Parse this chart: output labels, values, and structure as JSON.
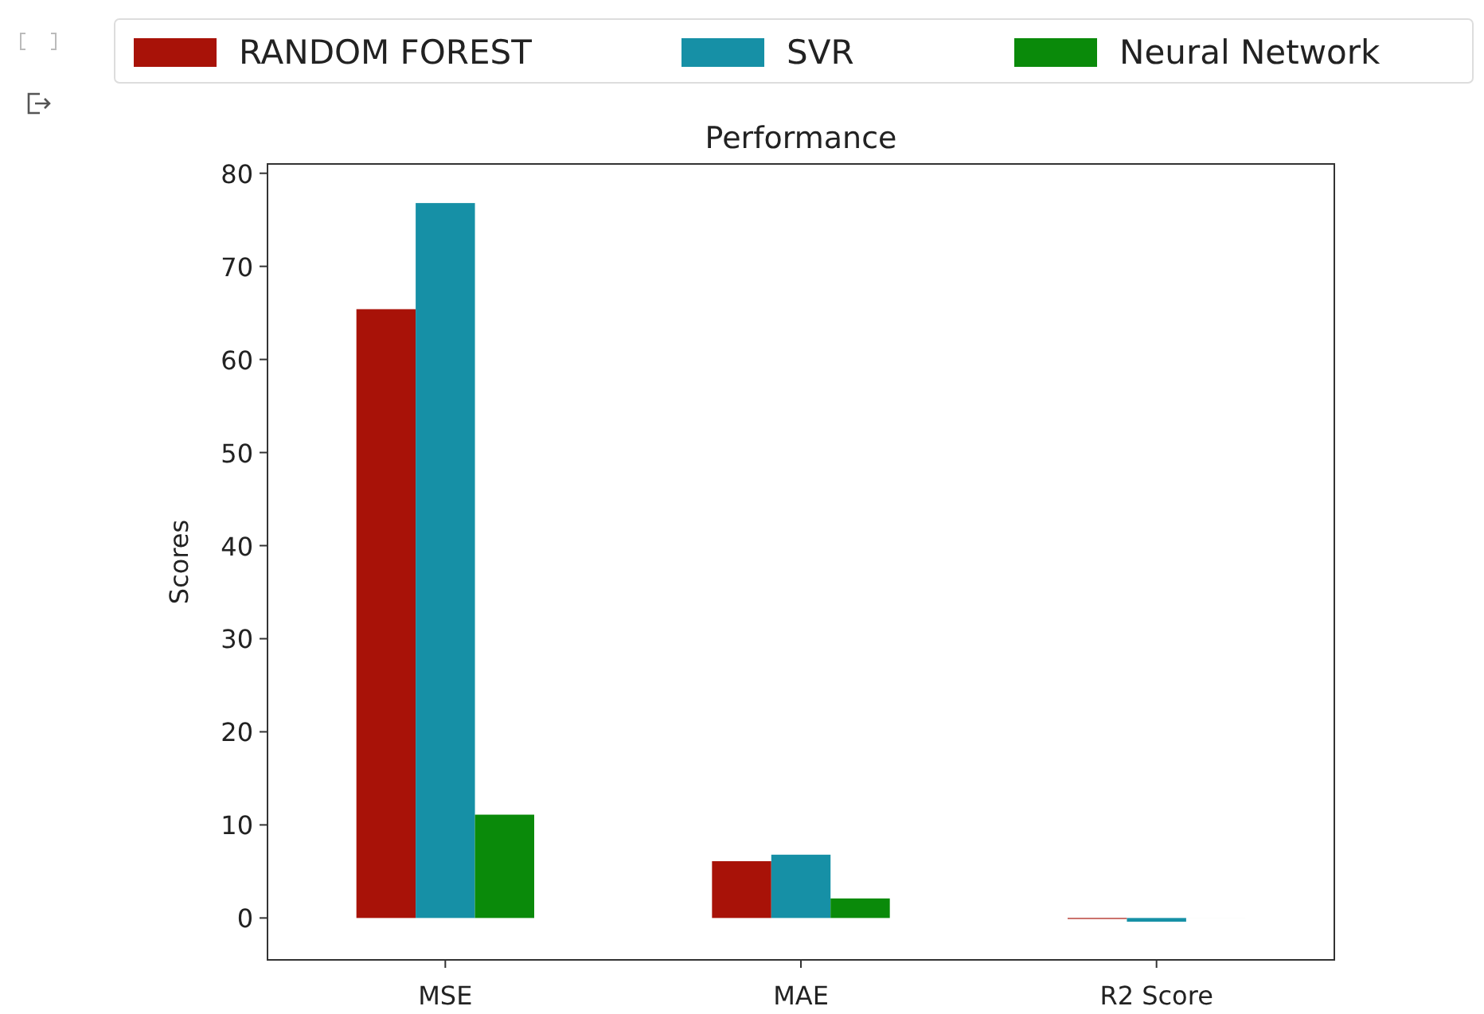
{
  "chart_data": {
    "type": "bar",
    "title": "Performance",
    "ylabel": "Scores",
    "categories": [
      "MSE",
      "MAE",
      "R2 Score"
    ],
    "series": [
      {
        "name": "RANDOM FOREST",
        "color": "#a81208",
        "values": [
          65.4,
          6.1,
          -0.1
        ]
      },
      {
        "name": "SVR",
        "color": "#1690a6",
        "values": [
          76.8,
          6.8,
          -0.4
        ]
      },
      {
        "name": "Neural Network",
        "color": "#0a8a0a",
        "values": [
          11.1,
          2.1,
          0
        ]
      }
    ],
    "ylim": [
      -4.5,
      81
    ],
    "yticks": [
      0,
      10,
      20,
      30,
      40,
      50,
      60,
      70,
      80
    ],
    "grid": false,
    "legend": "top"
  }
}
